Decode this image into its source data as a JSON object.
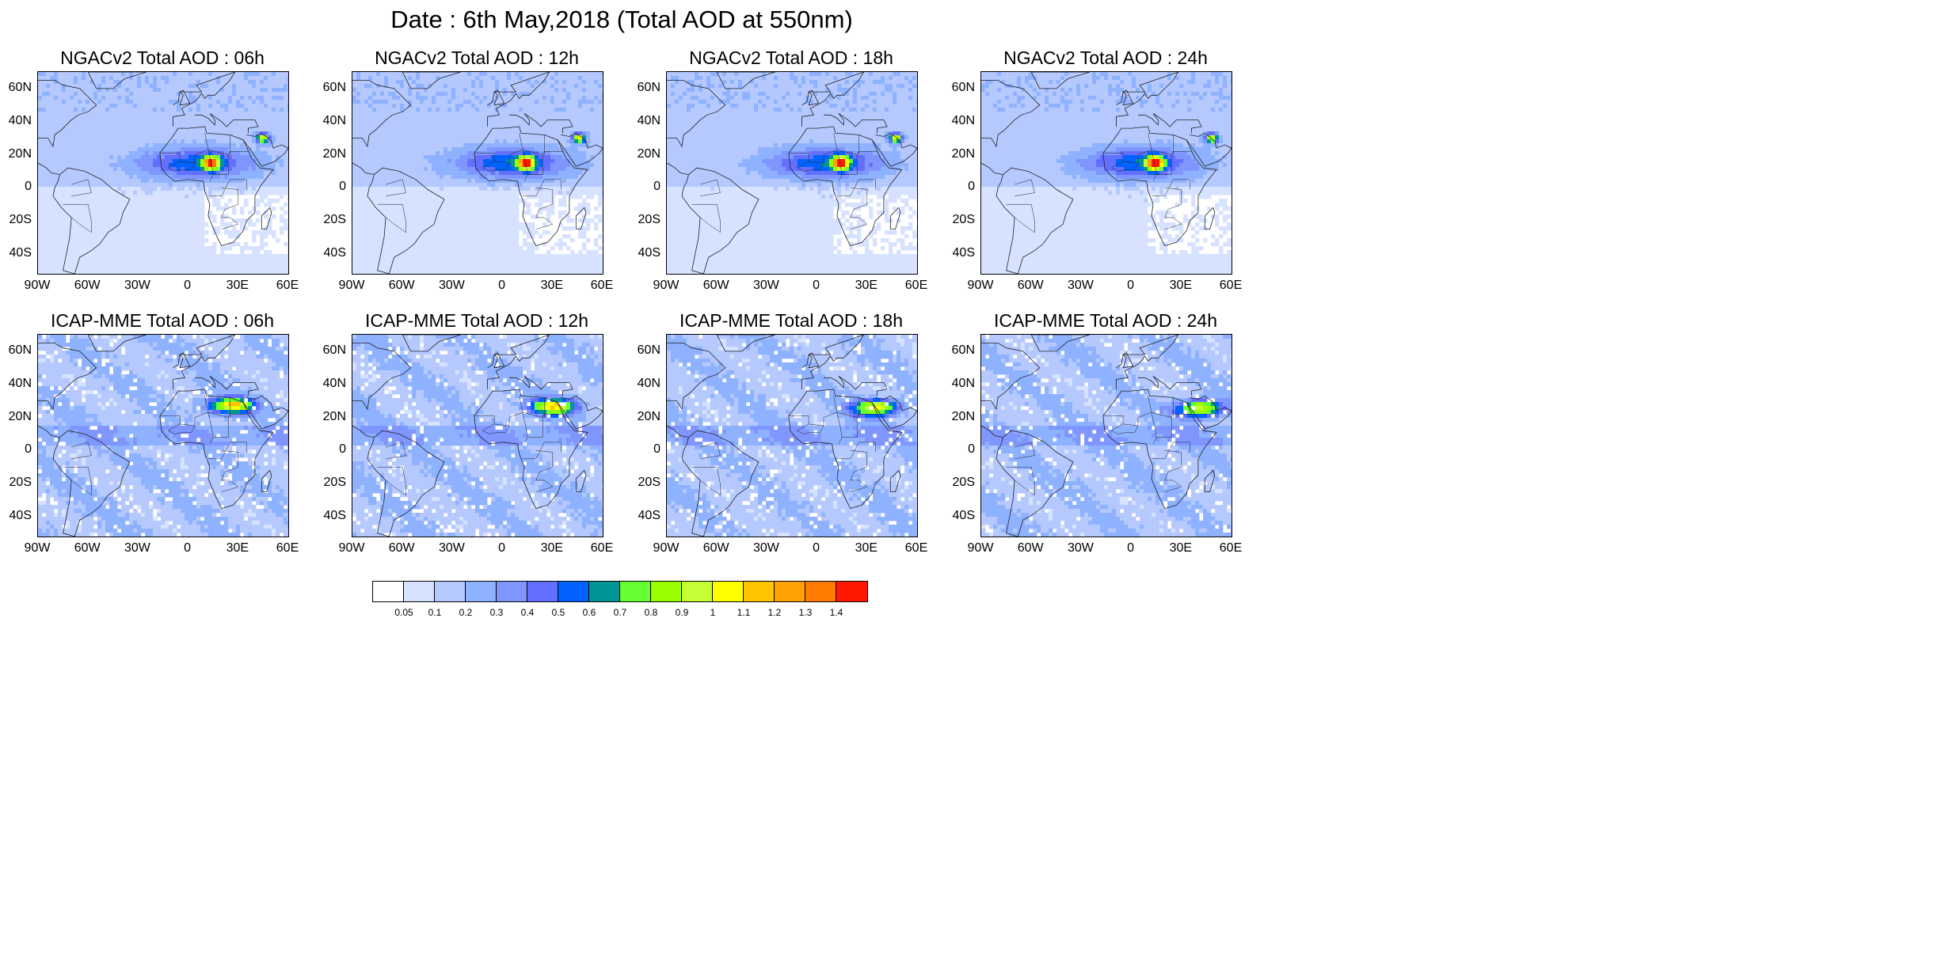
{
  "title": "Date : 6th May,2018 (Total AOD at 550nm)",
  "panels": [
    {
      "model": "NGACv2",
      "title": "NGACv2 Total AOD : 06h",
      "hour": "06h"
    },
    {
      "model": "NGACv2",
      "title": "NGACv2 Total AOD : 12h",
      "hour": "12h"
    },
    {
      "model": "NGACv2",
      "title": "NGACv2 Total AOD : 18h",
      "hour": "18h"
    },
    {
      "model": "NGACv2",
      "title": "NGACv2 Total AOD : 24h",
      "hour": "24h"
    },
    {
      "model": "ICAP-MME",
      "title": "ICAP-MME Total AOD : 06h",
      "hour": "06h"
    },
    {
      "model": "ICAP-MME",
      "title": "ICAP-MME Total AOD : 12h",
      "hour": "12h"
    },
    {
      "model": "ICAP-MME",
      "title": "ICAP-MME Total AOD : 18h",
      "hour": "18h"
    },
    {
      "model": "ICAP-MME",
      "title": "ICAP-MME Total AOD : 24h",
      "hour": "24h"
    }
  ],
  "lat_ticks": [
    "60N",
    "40N",
    "20N",
    "0",
    "20S",
    "40S"
  ],
  "lon_ticks": [
    "90W",
    "60W",
    "30W",
    "0",
    "30E",
    "60E"
  ],
  "colorbar": {
    "colors": [
      "#ffffff",
      "#d6e2ff",
      "#b5c9ff",
      "#8eb2ff",
      "#7f96ff",
      "#6370ff",
      "#0063ff",
      "#009696",
      "#66ff33",
      "#99ff00",
      "#c6ff33",
      "#ffff00",
      "#ffc400",
      "#ffa100",
      "#ff7c00",
      "#ff1900"
    ],
    "labels": [
      "0.05",
      "0.1",
      "0.2",
      "0.3",
      "0.4",
      "0.5",
      "0.6",
      "0.7",
      "0.8",
      "0.9",
      "1",
      "1.1",
      "1.2",
      "1.3",
      "1.4"
    ]
  }
}
